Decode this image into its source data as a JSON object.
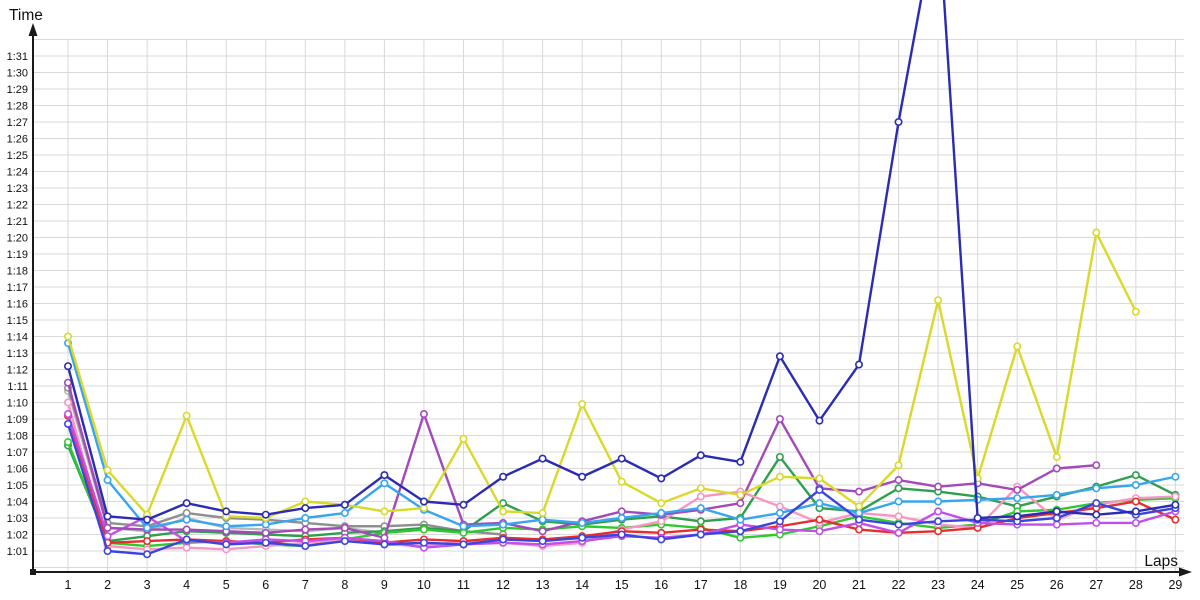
{
  "chart_data": {
    "type": "line",
    "title": "",
    "ylabel": "Time",
    "xlabel": "Laps",
    "grid": true,
    "legend": "none",
    "x_tick_labels": [
      "1",
      "2",
      "3",
      "4",
      "5",
      "6",
      "7",
      "8",
      "9",
      "10",
      "11",
      "12",
      "13",
      "14",
      "15",
      "16",
      "17",
      "18",
      "19",
      "20",
      "21",
      "22",
      "23",
      "24",
      "25",
      "26",
      "27",
      "28",
      "29"
    ],
    "y_tick_labels": [
      "1:01",
      "1:02",
      "1:03",
      "1:04",
      "1:05",
      "1:06",
      "1:07",
      "1:08",
      "1:09",
      "1:10",
      "1:11",
      "1:12",
      "1:13",
      "1:14",
      "1:15",
      "1:16",
      "1:17",
      "1:18",
      "1:19",
      "1:20",
      "1:21",
      "1:22",
      "1:23",
      "1:24",
      "1:25",
      "1:26",
      "1:27",
      "1:28",
      "1:29",
      "1:30",
      "1:31"
    ],
    "y_axis": {
      "unit": "m:ss",
      "label_min_seconds": 61,
      "label_max_seconds": 91,
      "grid_min_seconds": 60,
      "grid_max_seconds": 92
    },
    "x_axis": {
      "min_lap": 1,
      "max_lap": 29
    },
    "colors": {
      "grid": "#d9d9d9",
      "axis": "#1a1a1a",
      "marker_fill": "#ffffff"
    },
    "series": [
      {
        "name": "silver",
        "color": "#b8b8b8",
        "values": [
          70.7,
          62.4,
          62.2,
          63.0,
          62.4,
          62.3,
          62.2,
          62.4,
          62.1,
          62.3
        ]
      },
      {
        "name": "gray",
        "color": "#8f8f8f",
        "values": [
          70.9,
          62.7,
          62.5,
          63.3,
          63.0,
          62.9,
          62.7,
          62.5,
          62.5,
          62.6,
          62.2,
          62.0
        ]
      },
      {
        "name": "darkgreen",
        "color": "#2f9e4d",
        "values": [
          67.4,
          61.6,
          61.9,
          62.2,
          62.1,
          62.0,
          61.9,
          62.1,
          62.2,
          62.4,
          62.2,
          63.9,
          62.8,
          62.6,
          62.9,
          63.1,
          62.8,
          63.0,
          66.7,
          63.6,
          63.4,
          64.8,
          64.6,
          64.3,
          63.7,
          64.3,
          64.9,
          65.6,
          64.4
        ]
      },
      {
        "name": "green",
        "color": "#30c830",
        "values": [
          67.6,
          61.5,
          61.3,
          61.5,
          61.6,
          61.4,
          61.3,
          61.7,
          62.1,
          62.3,
          62.1,
          62.4,
          62.3,
          62.5,
          62.4,
          62.6,
          62.4,
          61.8,
          62.0,
          62.5,
          63.1,
          62.7,
          62.4,
          62.6,
          63.4,
          63.5,
          63.9,
          64.1,
          64.2
        ]
      },
      {
        "name": "pink",
        "color": "#f895c5",
        "values": [
          70.0,
          61.3,
          61.1,
          61.2,
          61.1,
          61.3,
          61.5,
          61.7,
          61.4,
          61.3,
          61.6,
          61.5,
          61.3,
          61.5,
          62.3,
          62.8,
          64.3,
          64.6,
          63.7,
          62.7,
          63.3,
          63.1,
          62.6,
          62.4,
          64.9,
          62.9,
          63.8,
          64.2,
          64.3
        ]
      },
      {
        "name": "red",
        "color": "#e62e2e",
        "values": [
          69.2,
          61.5,
          61.6,
          61.7,
          61.6,
          61.5,
          61.7,
          61.8,
          61.5,
          61.7,
          61.6,
          61.8,
          61.7,
          61.9,
          62.2,
          62.1,
          62.3,
          62.2,
          62.5,
          62.9,
          62.3,
          62.1,
          62.2,
          62.4,
          63.0,
          63.3,
          63.6,
          64.0,
          62.9
        ]
      },
      {
        "name": "magenta",
        "color": "#c24fe8",
        "values": [
          69.3,
          61.9,
          63.1,
          61.6,
          61.5,
          61.7,
          61.6,
          61.8,
          61.6,
          61.2,
          61.4,
          61.5,
          61.4,
          61.6,
          61.9,
          61.8,
          62.0,
          62.6,
          62.3,
          62.2,
          62.7,
          62.1,
          63.4,
          62.7,
          62.6,
          62.6,
          62.7,
          62.7,
          63.4
        ]
      },
      {
        "name": "purple",
        "color": "#a349b9",
        "values": [
          71.2,
          62.4,
          62.3,
          62.3,
          62.2,
          62.1,
          62.3,
          62.4,
          61.8,
          69.3,
          62.6,
          62.7,
          62.2,
          62.8,
          63.4,
          63.2,
          63.5,
          63.9,
          69.0,
          64.8,
          64.6,
          65.3,
          64.9,
          65.1,
          64.7,
          66.0,
          66.2
        ]
      },
      {
        "name": "cyan",
        "color": "#38a5ef",
        "values": [
          73.6,
          65.3,
          62.4,
          62.9,
          62.5,
          62.6,
          63.0,
          63.3,
          65.1,
          63.5,
          62.5,
          62.6,
          62.9,
          62.7,
          63.0,
          63.3,
          63.6,
          62.9,
          63.3,
          63.9,
          63.3,
          64.0,
          64.0,
          64.1,
          64.2,
          64.4,
          64.8,
          65.0,
          65.5
        ]
      },
      {
        "name": "yellow",
        "color": "#d9d92b",
        "values": [
          74.0,
          65.9,
          63.2,
          69.2,
          63.1,
          63.0,
          64.0,
          63.8,
          63.4,
          63.6,
          67.8,
          63.4,
          63.3,
          69.9,
          65.2,
          63.9,
          64.8,
          64.4,
          65.5,
          65.4,
          63.7,
          66.2,
          76.2,
          65.4,
          73.4,
          66.7,
          80.3,
          75.5
        ]
      },
      {
        "name": "blue",
        "color": "#3a45e0",
        "values": [
          68.7,
          61.0,
          60.8,
          61.7,
          61.4,
          61.5,
          61.3,
          61.6,
          61.4,
          61.5,
          61.4,
          61.7,
          61.6,
          61.8,
          62.0,
          61.7,
          62.0,
          62.2,
          62.8,
          64.7,
          62.9,
          62.6,
          62.8,
          62.9,
          62.8,
          63.0,
          63.9,
          63.2,
          63.6
        ]
      },
      {
        "name": "navy",
        "color": "#2b2bb4",
        "values": [
          72.2,
          63.1,
          62.9,
          63.9,
          63.4,
          63.2,
          63.6,
          63.8,
          65.6,
          64.0,
          63.8,
          65.5,
          66.6,
          65.5,
          66.6,
          65.4,
          66.8,
          66.4,
          72.8,
          68.9,
          72.3,
          87.0,
          100.0,
          63.0,
          63.1,
          63.4,
          63.2,
          63.4,
          63.8
        ]
      }
    ]
  }
}
